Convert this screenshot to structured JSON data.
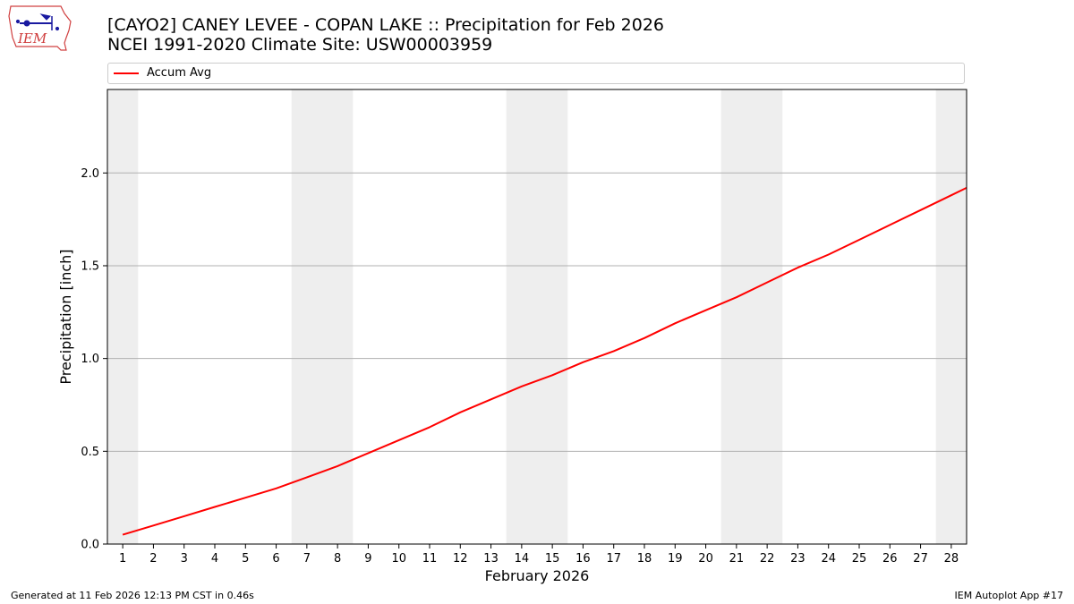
{
  "header": {
    "title_line1": "[CAYO2] CANEY LEVEE - COPAN LAKE :: Precipitation for Feb 2026",
    "title_line2": "NCEI 1991-2020 Climate Site: USW00003959"
  },
  "logo": {
    "text": "IEM",
    "icon": "iowa-weather-station-logo-icon"
  },
  "legend": {
    "position": "top, full width"
  },
  "footer": {
    "generated": "Generated at 11 Feb 2026 12:13 PM CST in 0.46s",
    "app": "IEM Autoplot App #17"
  },
  "colors": {
    "series": "#ff0000",
    "weekend_band": "#eeeeee",
    "grid": "#b0b0b0"
  },
  "chart_data": {
    "type": "line",
    "xlabel": "February 2026",
    "ylabel": "Precipitation [inch]",
    "ylim": [
      0,
      2.45
    ],
    "xlim": [
      0.5,
      28.5
    ],
    "y_ticks": [
      0.0,
      0.5,
      1.0,
      1.5,
      2.0
    ],
    "y_tick_labels": [
      "0.0",
      "0.5",
      "1.0",
      "1.5",
      "2.0"
    ],
    "x": [
      1,
      2,
      3,
      4,
      5,
      6,
      7,
      8,
      9,
      10,
      11,
      12,
      13,
      14,
      15,
      16,
      17,
      18,
      19,
      20,
      21,
      22,
      23,
      24,
      25,
      26,
      27,
      28
    ],
    "x_tick_labels": [
      "1",
      "2",
      "3",
      "4",
      "5",
      "6",
      "7",
      "8",
      "9",
      "10",
      "11",
      "12",
      "13",
      "14",
      "15",
      "16",
      "17",
      "18",
      "19",
      "20",
      "21",
      "22",
      "23",
      "24",
      "25",
      "26",
      "27",
      "28"
    ],
    "grid": "horizontal",
    "weekend_days": [
      1,
      7,
      8,
      14,
      15,
      21,
      22,
      28
    ],
    "series": [
      {
        "name": "Accum Avg",
        "color": "#ff0000",
        "x": [
          1,
          2,
          3,
          4,
          5,
          6,
          7,
          8,
          9,
          10,
          11,
          12,
          13,
          14,
          15,
          16,
          17,
          18,
          19,
          20,
          21,
          22,
          23,
          24,
          25,
          26,
          27,
          28,
          28.5
        ],
        "values": [
          0.05,
          0.1,
          0.15,
          0.2,
          0.25,
          0.3,
          0.36,
          0.42,
          0.49,
          0.56,
          0.63,
          0.71,
          0.78,
          0.85,
          0.91,
          0.98,
          1.04,
          1.11,
          1.19,
          1.26,
          1.33,
          1.41,
          1.49,
          1.56,
          1.64,
          1.72,
          1.8,
          1.88,
          1.92
        ]
      }
    ]
  }
}
